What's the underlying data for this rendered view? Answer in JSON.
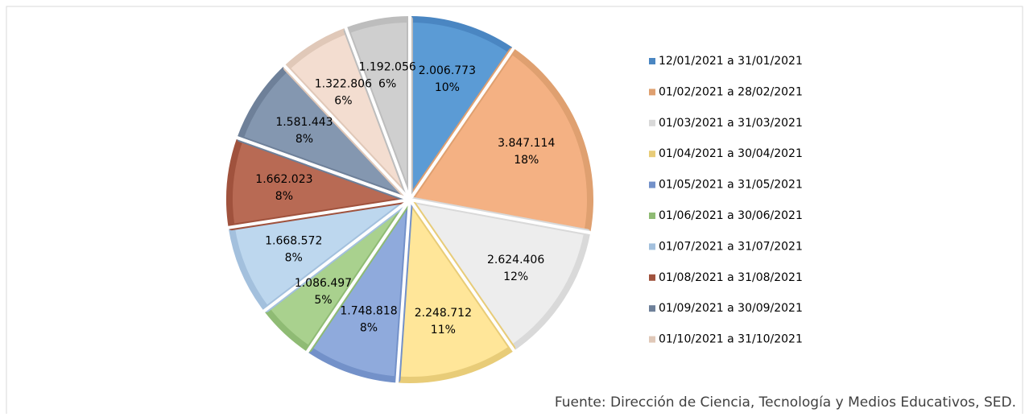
{
  "chart_data": {
    "type": "pie",
    "categories": [
      "12/01/2021 a 31/01/2021",
      "01/02/2021 a 28/02/2021",
      "01/03/2021 a 31/03/2021",
      "01/04/2021 a 30/04/2021",
      "01/05/2021 a 31/05/2021",
      "01/06/2021 a 30/06/2021",
      "01/07/2021 a 31/07/2021",
      "01/08/2021 a 31/08/2021",
      "01/09/2021 a 30/09/2021",
      "01/10/2021 a 31/10/2021",
      null
    ],
    "values": [
      2006773,
      3847114,
      2624406,
      2248712,
      1748818,
      1086497,
      1668572,
      1662023,
      1581443,
      1322806,
      1192056
    ],
    "value_labels": [
      "2.006.773",
      "3.847.114",
      "2.624.406",
      "2.248.712",
      "1.748.818",
      "1.086.497",
      "1.668.572",
      "1.662.023",
      "1.581.443",
      "1.322.806",
      "1.192.056"
    ],
    "percent_labels": [
      "10%",
      "18%",
      "12%",
      "11%",
      "8%",
      "5%",
      "8%",
      "8%",
      "8%",
      "6%",
      "6%"
    ],
    "colors": [
      "#5b9bd5",
      "#f4b183",
      "#ededed",
      "#ffe699",
      "#8faadc",
      "#a9d18e",
      "#bdd7ee",
      "#b86a54",
      "#8497b0",
      "#f3ddd0",
      "#cfcfcf"
    ],
    "border_colors": [
      "#4a86c2",
      "#dfa070",
      "#d9d9d9",
      "#e8cc78",
      "#7391c9",
      "#8fbb74",
      "#a3c0dd",
      "#a0523d",
      "#6e8099",
      "#e0c8b8",
      "#bdbdbd"
    ],
    "source": "Fuente: Dirección de Ciencia, Tecnología y Medios Educativos, SED."
  }
}
